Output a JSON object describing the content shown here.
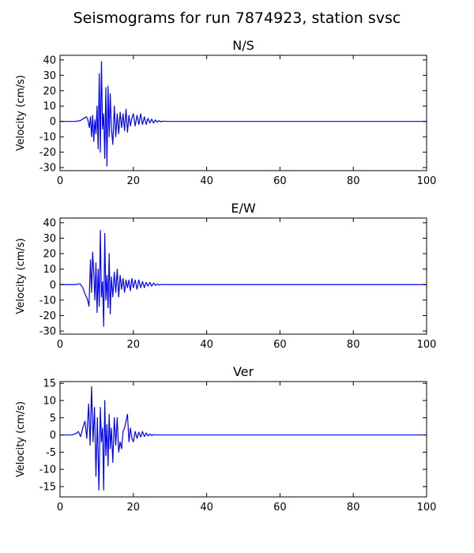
{
  "figure": {
    "title": "Seismograms for run 7874923, station svsc"
  },
  "chart_data": [
    {
      "type": "line",
      "title": "N/S",
      "xlabel": "",
      "ylabel": "Velocity (cm/s)",
      "xlim": [
        0,
        100
      ],
      "ylim": [
        -32,
        43
      ],
      "xticks": [
        0,
        20,
        40,
        60,
        80,
        100
      ],
      "yticks": [
        -30,
        -20,
        -10,
        0,
        10,
        20,
        30,
        40
      ],
      "grid": false,
      "series": [
        {
          "color": "#0000ff",
          "x": [
            0,
            4,
            5.5,
            6.5,
            7.2,
            7.6,
            8.0,
            8.3,
            8.6,
            8.9,
            9.2,
            9.5,
            9.8,
            10.1,
            10.4,
            10.7,
            11.0,
            11.3,
            11.6,
            11.9,
            12.2,
            12.5,
            12.8,
            13.1,
            13.4,
            13.7,
            14.0,
            14.4,
            14.8,
            15.2,
            15.6,
            16.0,
            16.4,
            16.8,
            17.2,
            17.6,
            18.0,
            18.4,
            18.8,
            19.2,
            19.6,
            20.0,
            20.5,
            21.0,
            21.5,
            22.0,
            22.5,
            23.0,
            23.5,
            24.0,
            24.5,
            25.0,
            25.5,
            26.0,
            26.5,
            27.0,
            27.5,
            28.0,
            29.0,
            30.0,
            40,
            60,
            80,
            100
          ],
          "y": [
            0,
            0,
            0.5,
            2,
            3,
            1,
            -4,
            3,
            -10,
            4,
            -13,
            1,
            -8,
            10,
            -18,
            31,
            -20,
            39,
            -5,
            5,
            -24,
            22,
            -29,
            23,
            -10,
            18,
            -4,
            -15,
            10,
            -10,
            5,
            -8,
            6,
            -4,
            5,
            -6,
            8,
            -7,
            4,
            -3,
            2,
            5,
            -3,
            4,
            -2,
            5,
            -2,
            3,
            -2,
            2,
            -1,
            1.5,
            -1,
            1,
            -0.5,
            0.5,
            -0.3,
            0.2,
            0,
            0,
            0,
            0,
            0,
            0
          ]
        }
      ]
    },
    {
      "type": "line",
      "title": "E/W",
      "xlabel": "",
      "ylabel": "Velocity (cm/s)",
      "xlim": [
        0,
        100
      ],
      "ylim": [
        -32,
        43
      ],
      "xticks": [
        0,
        20,
        40,
        60,
        80,
        100
      ],
      "yticks": [
        -30,
        -20,
        -10,
        0,
        10,
        20,
        30,
        40
      ],
      "grid": false,
      "series": [
        {
          "color": "#0000ff",
          "x": [
            0,
            4,
            5.5,
            6.2,
            6.8,
            7.4,
            7.9,
            8.3,
            8.6,
            8.9,
            9.2,
            9.5,
            9.8,
            10.1,
            10.4,
            10.7,
            11.0,
            11.3,
            11.6,
            11.9,
            12.2,
            12.5,
            12.8,
            13.1,
            13.4,
            13.7,
            14.0,
            14.4,
            14.8,
            15.2,
            15.6,
            16.0,
            16.4,
            16.8,
            17.2,
            17.6,
            18.0,
            18.4,
            18.8,
            19.2,
            19.6,
            20.0,
            20.5,
            21.0,
            21.5,
            22.0,
            22.5,
            23.0,
            23.5,
            24.0,
            24.5,
            25.0,
            25.5,
            26.0,
            26.5,
            27.0,
            27.5,
            28.0,
            29.0,
            30.0,
            40,
            60,
            80,
            100
          ],
          "y": [
            0,
            0,
            0.5,
            -2,
            -6,
            -9,
            -14,
            16,
            -5,
            21,
            8,
            -10,
            14,
            -18,
            10,
            -14,
            35,
            -8,
            2,
            -27,
            33,
            -10,
            6,
            -15,
            20,
            -19,
            5,
            -8,
            8,
            -5,
            10,
            -8,
            6,
            -3,
            4,
            -5,
            3,
            -2,
            3,
            -4,
            4,
            -2,
            3,
            -3,
            3,
            -2,
            2,
            -2,
            1.5,
            -1,
            1.5,
            -1,
            1,
            -0.5,
            0.5,
            -0.3,
            0.2,
            0,
            0,
            0,
            0,
            0,
            0,
            0
          ]
        }
      ]
    },
    {
      "type": "line",
      "title": "Ver",
      "xlabel": "",
      "ylabel": "Velocity (cm/s)",
      "xlim": [
        0,
        100
      ],
      "ylim": [
        -18,
        15.5
      ],
      "xticks": [
        0,
        20,
        40,
        60,
        80,
        100
      ],
      "yticks": [
        -15,
        -10,
        -5,
        0,
        5,
        10,
        15
      ],
      "grid": false,
      "series": [
        {
          "color": "#0000ff",
          "x": [
            0,
            3,
            4.2,
            5.0,
            5.6,
            6.2,
            6.8,
            7.3,
            7.8,
            8.2,
            8.6,
            9.0,
            9.4,
            9.8,
            10.2,
            10.6,
            11.0,
            11.3,
            11.6,
            11.9,
            12.2,
            12.5,
            12.8,
            13.1,
            13.4,
            13.7,
            14.0,
            14.4,
            14.8,
            15.2,
            15.6,
            16.0,
            16.4,
            16.8,
            17.2,
            17.6,
            18.0,
            18.4,
            18.8,
            19.2,
            19.6,
            20.0,
            20.5,
            21.0,
            21.5,
            22.0,
            22.5,
            23.0,
            23.5,
            24.0,
            24.5,
            25.0,
            25.5,
            26.0,
            26.5,
            27.0,
            27.5,
            28.0,
            29.0,
            30.0,
            40,
            60,
            80,
            100
          ],
          "y": [
            0,
            0,
            0.3,
            1,
            -0.5,
            2,
            4,
            -1,
            9,
            -3,
            14,
            -2,
            8,
            -12,
            5,
            -16,
            8,
            -2,
            2,
            -16,
            10,
            -6,
            3,
            -9,
            6,
            -4,
            2,
            -8,
            5,
            -3,
            5,
            -5,
            -2,
            -4,
            1,
            2,
            4,
            6,
            -2,
            2,
            -1,
            -2,
            1,
            -1,
            0.8,
            -0.6,
            1,
            -0.5,
            0.6,
            -0.3,
            0.3,
            -0.2,
            0.1,
            0,
            0,
            0,
            0,
            0,
            0,
            0,
            0,
            0,
            0,
            0
          ]
        }
      ]
    }
  ]
}
